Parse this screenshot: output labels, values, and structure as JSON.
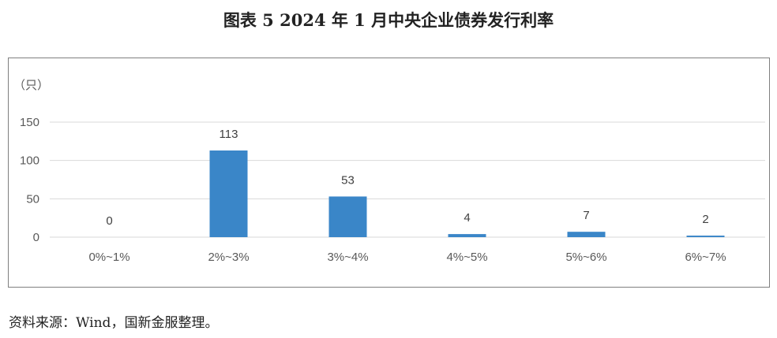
{
  "figure": {
    "title": "图表 5 2024 年 1 月中央企业债券发行利率",
    "source": "资料来源：Wind，国新金服整理。"
  },
  "chart_data": {
    "type": "bar",
    "title": "图表 5 2024 年 1 月中央企业债券发行利率",
    "ylabel": "（只）",
    "xlabel": "",
    "categories": [
      "0%~1%",
      "2%~3%",
      "3%~4%",
      "4%~5%",
      "5%~6%",
      "6%~7%"
    ],
    "values": [
      0,
      113,
      53,
      4,
      7,
      2
    ],
    "ylim": [
      0,
      150
    ],
    "yticks": [
      0,
      50,
      100,
      150
    ],
    "data_labels": true,
    "grid": true,
    "legend": "none",
    "bar_color": "#3a86c8",
    "grid_color": "#d9d9d9"
  }
}
